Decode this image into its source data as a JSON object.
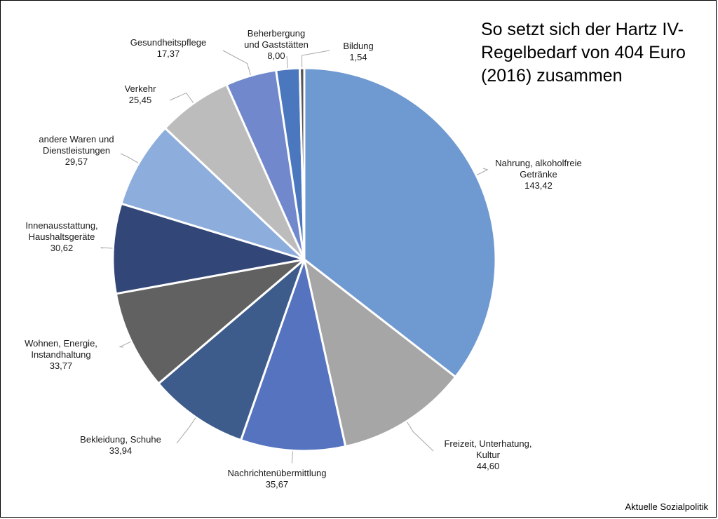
{
  "chart_data": {
    "type": "pie",
    "title_lines": [
      "So setzt sich der Hartz IV-",
      "Regelbedarf von 404 Euro",
      "(2016) zusammen"
    ],
    "total": 404,
    "unit": "Euro",
    "slices": [
      {
        "label": [
          "Nahrung, alkoholfreie",
          "Getränke"
        ],
        "value": 143.42,
        "display": "143,42",
        "color": "#6f99d1"
      },
      {
        "label": [
          "Freizeit, Unterhatung,",
          "Kultur"
        ],
        "value": 44.6,
        "display": "44,60",
        "color": "#a6a6a6"
      },
      {
        "label": [
          "Nachrichtenübermittlung"
        ],
        "value": 35.67,
        "display": "35,67",
        "color": "#5673c0"
      },
      {
        "label": [
          "Bekleidung, Schuhe"
        ],
        "value": 33.94,
        "display": "33,94",
        "color": "#3d5c8c"
      },
      {
        "label": [
          "Wohnen, Energie,",
          "Instandhaltung"
        ],
        "value": 33.77,
        "display": "33,77",
        "color": "#616161"
      },
      {
        "label": [
          "Innenausstattung,",
          "Haushaltsgeräte"
        ],
        "value": 30.62,
        "display": "30,62",
        "color": "#324677"
      },
      {
        "label": [
          "andere Waren und",
          "Dienstleistungen"
        ],
        "value": 29.57,
        "display": "29,57",
        "color": "#8daedc"
      },
      {
        "label": [
          "Verkehr"
        ],
        "value": 25.45,
        "display": "25,45",
        "color": "#bcbcbc"
      },
      {
        "label": [
          "Gesundheitspflege"
        ],
        "value": 17.37,
        "display": "17,37",
        "color": "#7189cc"
      },
      {
        "label": [
          "Beherbergung",
          "und Gaststätten"
        ],
        "value": 8.0,
        "display": "8,00",
        "color": "#4a77bd"
      },
      {
        "label": [
          "Bildung"
        ],
        "value": 1.54,
        "display": "1,54",
        "color": "#555555"
      }
    ]
  },
  "source": "Aktuelle Sozialpolitik"
}
